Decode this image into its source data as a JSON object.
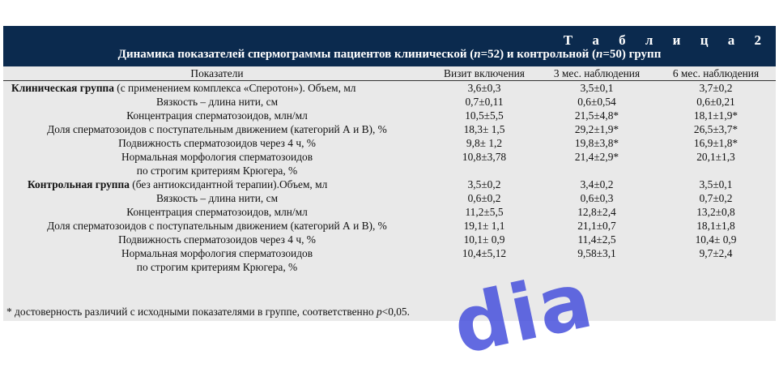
{
  "table_label": "Т а б л и ц а  2",
  "title": "Динамика показателей спермограммы пациентов клинической (n=52) и контрольной (n=50) групп",
  "columns": [
    "Показатели",
    "Визит включения",
    "3 мес. наблюдения",
    "6 мес. наблюдения"
  ],
  "clinical": {
    "group_name": "Клиническая группа",
    "group_note": " (с применением комплекса «Сперотон»). Объем, мл",
    "rows": [
      {
        "label": "",
        "v1": "3,6±0,3",
        "v2": "3,5±0,1",
        "v3": "3,7±0,2"
      },
      {
        "label": "Вязкость – длина нити, см",
        "v1": "0,7±0,11",
        "v2": "0,6±0,54",
        "v3": "0,6±0,21"
      },
      {
        "label": "Концентрация сперматозоидов, млн/мл",
        "v1": "10,5±5,5",
        "v2": "21,5±4,8*",
        "v3": "18,1±1,9*"
      },
      {
        "label": "Доля сперматозоидов с поступательным движением (категорий А и В), %",
        "v1": "18,3± 1,5",
        "v2": "29,2±1,9*",
        "v3": "26,5±3,7*"
      },
      {
        "label": "Подвижность сперматозоидов через 4 ч, %",
        "v1": "9,8± 1,2",
        "v2": "19,8±3,8*",
        "v3": "16,9±1,8*"
      },
      {
        "label": "Нормальная морфология сперматозоидов",
        "label2": "по строгим критериям Крюгера, %",
        "v1": "10,8±3,78",
        "v2": "21,4±2,9*",
        "v3": "20,1±1,3"
      }
    ]
  },
  "control": {
    "group_name": "Контрольная группа",
    "group_note": " (без антиоксидантной терапии).Объем, мл",
    "rows": [
      {
        "label": "",
        "v1": "3,5±0,2",
        "v2": "3,4±0,2",
        "v3": "3,5±0,1"
      },
      {
        "label": "Вязкость – длина нити, см",
        "v1": "0,6±0,2",
        "v2": "0,6±0,3",
        "v3": "0,7±0,2"
      },
      {
        "label": "Концентрация сперматозоидов, млн/мл",
        "v1": "11,2±5,5",
        "v2": "12,8±2,4",
        "v3": "13,2±0,8"
      },
      {
        "label": "Доля сперматозоидов с поступательным движением (категорий А и В), %",
        "v1": "19,1± 1,1",
        "v2": "21,1±0,7",
        "v3": "18,1±1,8"
      },
      {
        "label": "Подвижность сперматозоидов через 4 ч, %",
        "v1": "10,1± 0,9",
        "v2": "11,4±2,5",
        "v3": "10,4± 0,9"
      },
      {
        "label": "Нормальная морфология сперматозоидов",
        "label2": "по строгим критериям Крюгера, %",
        "v1": "10,4±5,12",
        "v2": "9,58±3,1",
        "v3": "9,7±2,4"
      }
    ]
  },
  "footnote": "* достоверность различий с исходными показателями в группе, соответственно p<0,05.",
  "watermark": "dia"
}
